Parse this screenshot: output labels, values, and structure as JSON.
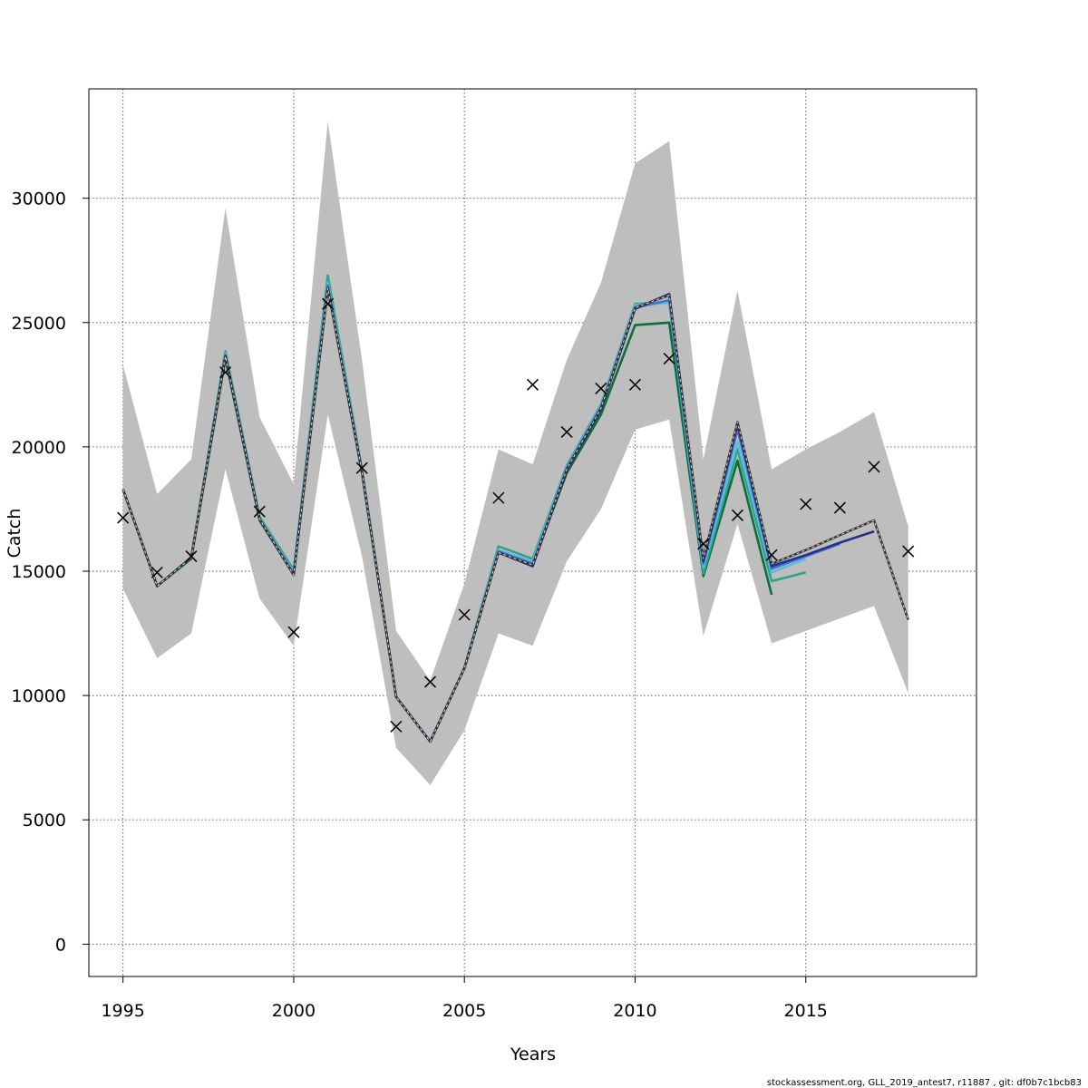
{
  "chart_data": {
    "type": "line",
    "xlabel": "Years",
    "ylabel": "Catch",
    "xlim": [
      1994,
      2020
    ],
    "ylim": [
      -1300,
      34400
    ],
    "x_ticks": [
      1995,
      2000,
      2005,
      2010,
      2015
    ],
    "y_ticks": [
      0,
      5000,
      10000,
      15000,
      20000,
      25000,
      30000
    ],
    "grid": true,
    "footer": "stockassessment.org, GLL_2019_antest7, r11887 , git: df0b7c1bcb83",
    "colors": {
      "band": "#bebebe",
      "observed": "#000000",
      "base": "#333333",
      "retro": [
        "#2b2c8c",
        "#3f75d8",
        "#5cbcdc",
        "#2fa38a",
        "#0a6f3a"
      ]
    },
    "confidence_band": {
      "x": [
        1995,
        1996,
        1997,
        1998,
        1999,
        2000,
        2001,
        2002,
        2003,
        2004,
        2005,
        2006,
        2007,
        2008,
        2009,
        2010,
        2011,
        2012,
        2013,
        2014,
        2015,
        2016,
        2017,
        2018
      ],
      "lower": [
        14300,
        11500,
        12500,
        19100,
        13900,
        12000,
        21300,
        15600,
        7900,
        6400,
        8600,
        12500,
        12000,
        15400,
        17500,
        20700,
        21100,
        12400,
        16900,
        12100,
        12600,
        13100,
        13600,
        10100
      ],
      "upper": [
        23300,
        18100,
        19500,
        29600,
        21200,
        18500,
        33100,
        23500,
        12600,
        10600,
        14500,
        19900,
        19300,
        23500,
        26600,
        31400,
        32300,
        19500,
        26300,
        19100,
        19900,
        20600,
        21400,
        16800
      ]
    },
    "observed": {
      "x": [
        1995,
        1996,
        1997,
        1998,
        1999,
        2000,
        2001,
        2002,
        2003,
        2004,
        2005,
        2006,
        2007,
        2008,
        2009,
        2010,
        2011,
        2012,
        2013,
        2014,
        2015,
        2016,
        2017,
        2018
      ],
      "y": [
        17150,
        14950,
        15600,
        23000,
        17400,
        12550,
        25750,
        19150,
        8750,
        10550,
        13250,
        17950,
        22500,
        20600,
        22350,
        22500,
        23550,
        16100,
        17250,
        15650,
        17700,
        17550,
        19200,
        15800
      ]
    },
    "series": [
      {
        "x": [
          1995,
          1996,
          1997,
          1998,
          1999,
          2000,
          2001,
          2002,
          2003,
          2004,
          2005,
          2006,
          2007,
          2008,
          2009,
          2010,
          2011,
          2012,
          2013,
          2014,
          2015,
          2016,
          2017,
          2018
        ],
        "y": [
          18300,
          14400,
          15550,
          23650,
          17100,
          14850,
          26400,
          19000,
          9950,
          8150,
          11100,
          15750,
          15250,
          19100,
          21550,
          25600,
          26100,
          15500,
          21000,
          15300,
          15850,
          16450,
          17050,
          13050
        ]
      },
      {
        "x": [
          1995,
          1996,
          1997,
          1998,
          1999,
          2000,
          2001,
          2002,
          2003,
          2004,
          2005,
          2006,
          2007,
          2008,
          2009,
          2010,
          2011,
          2012,
          2013,
          2014,
          2015,
          2016,
          2017
        ],
        "y": [
          18300,
          14400,
          15550,
          23650,
          17100,
          14850,
          26400,
          19000,
          9950,
          8150,
          11100,
          15750,
          15200,
          19050,
          21500,
          25550,
          26150,
          15400,
          20900,
          15200,
          15650,
          16150,
          16600
        ]
      },
      {
        "x": [
          1995,
          1996,
          1997,
          1998,
          1999,
          2000,
          2001,
          2002,
          2003,
          2004,
          2005,
          2006,
          2007,
          2008,
          2009,
          2010,
          2011,
          2012,
          2013,
          2014,
          2015,
          2016
        ],
        "y": [
          18300,
          14400,
          15550,
          23700,
          17100,
          14900,
          26500,
          19000,
          9950,
          8150,
          11100,
          15800,
          15300,
          19150,
          21600,
          25600,
          25900,
          15300,
          20700,
          15100,
          15600,
          16100
        ]
      },
      {
        "x": [
          1995,
          1996,
          1997,
          1998,
          1999,
          2000,
          2001,
          2002,
          2003,
          2004,
          2005,
          2006,
          2007,
          2008,
          2009,
          2010,
          2011,
          2012,
          2013,
          2014,
          2015
        ],
        "y": [
          18300,
          14400,
          15550,
          23750,
          17150,
          14950,
          26600,
          19050,
          9950,
          8150,
          11100,
          15850,
          15400,
          19200,
          21650,
          25700,
          25800,
          15150,
          20200,
          14950,
          15500
        ]
      },
      {
        "x": [
          1995,
          1996,
          1997,
          1998,
          1999,
          2000,
          2001,
          2002,
          2003,
          2004,
          2005,
          2006,
          2007,
          2008,
          2009,
          2010,
          2011,
          2012,
          2013,
          2014,
          2015
        ],
        "y": [
          18300,
          14400,
          15550,
          23850,
          17200,
          15050,
          26900,
          19100,
          9950,
          8150,
          11100,
          16000,
          15500,
          19250,
          21700,
          25750,
          25800,
          14900,
          19900,
          14600,
          14950
        ]
      },
      {
        "x": [
          1995,
          1996,
          1997,
          1998,
          1999,
          2000,
          2001,
          2002,
          2003,
          2004,
          2005,
          2006,
          2007,
          2008,
          2009,
          2010,
          2011,
          2012,
          2013,
          2014
        ],
        "y": [
          18300,
          14400,
          15500,
          23550,
          17050,
          14850,
          26400,
          18950,
          9950,
          8150,
          11100,
          15750,
          15300,
          18950,
          21300,
          24900,
          25000,
          14800,
          19450,
          14050
        ]
      }
    ]
  }
}
